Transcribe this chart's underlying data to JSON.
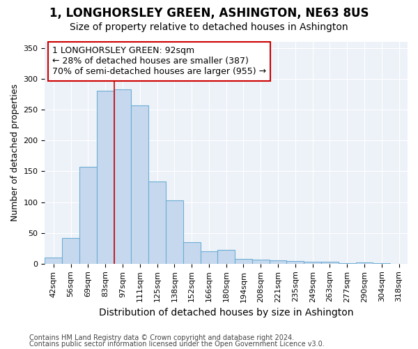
{
  "title": "1, LONGHORSLEY GREEN, ASHINGTON, NE63 8US",
  "subtitle": "Size of property relative to detached houses in Ashington",
  "xlabel": "Distribution of detached houses by size in Ashington",
  "ylabel": "Number of detached properties",
  "bar_labels": [
    "42sqm",
    "56sqm",
    "69sqm",
    "83sqm",
    "97sqm",
    "111sqm",
    "125sqm",
    "138sqm",
    "152sqm",
    "166sqm",
    "180sqm",
    "194sqm",
    "208sqm",
    "221sqm",
    "235sqm",
    "249sqm",
    "263sqm",
    "277sqm",
    "290sqm",
    "304sqm",
    "318sqm"
  ],
  "bar_values": [
    10,
    42,
    157,
    281,
    283,
    257,
    133,
    103,
    35,
    20,
    22,
    8,
    7,
    5,
    4,
    3,
    3,
    1,
    2,
    1,
    0
  ],
  "bar_color": "#c5d8ee",
  "bar_edgecolor": "#6eadd4",
  "vline_x_index": 4,
  "vline_color": "#cc0000",
  "annotation_text": "1 LONGHORSLEY GREEN: 92sqm\n← 28% of detached houses are smaller (387)\n70% of semi-detached houses are larger (955) →",
  "annotation_box_edgecolor": "#cc0000",
  "ylim": [
    0,
    360
  ],
  "yticks": [
    0,
    50,
    100,
    150,
    200,
    250,
    300,
    350
  ],
  "footnote1": "Contains HM Land Registry data © Crown copyright and database right 2024.",
  "footnote2": "Contains public sector information licensed under the Open Government Licence v3.0.",
  "bg_color": "#ffffff",
  "plot_bg_color": "#edf2f9",
  "grid_color": "#ffffff",
  "title_fontsize": 12,
  "subtitle_fontsize": 10,
  "annotation_fontsize": 9,
  "tick_fontsize": 8,
  "ylabel_fontsize": 9,
  "xlabel_fontsize": 10,
  "footnote_fontsize": 7
}
